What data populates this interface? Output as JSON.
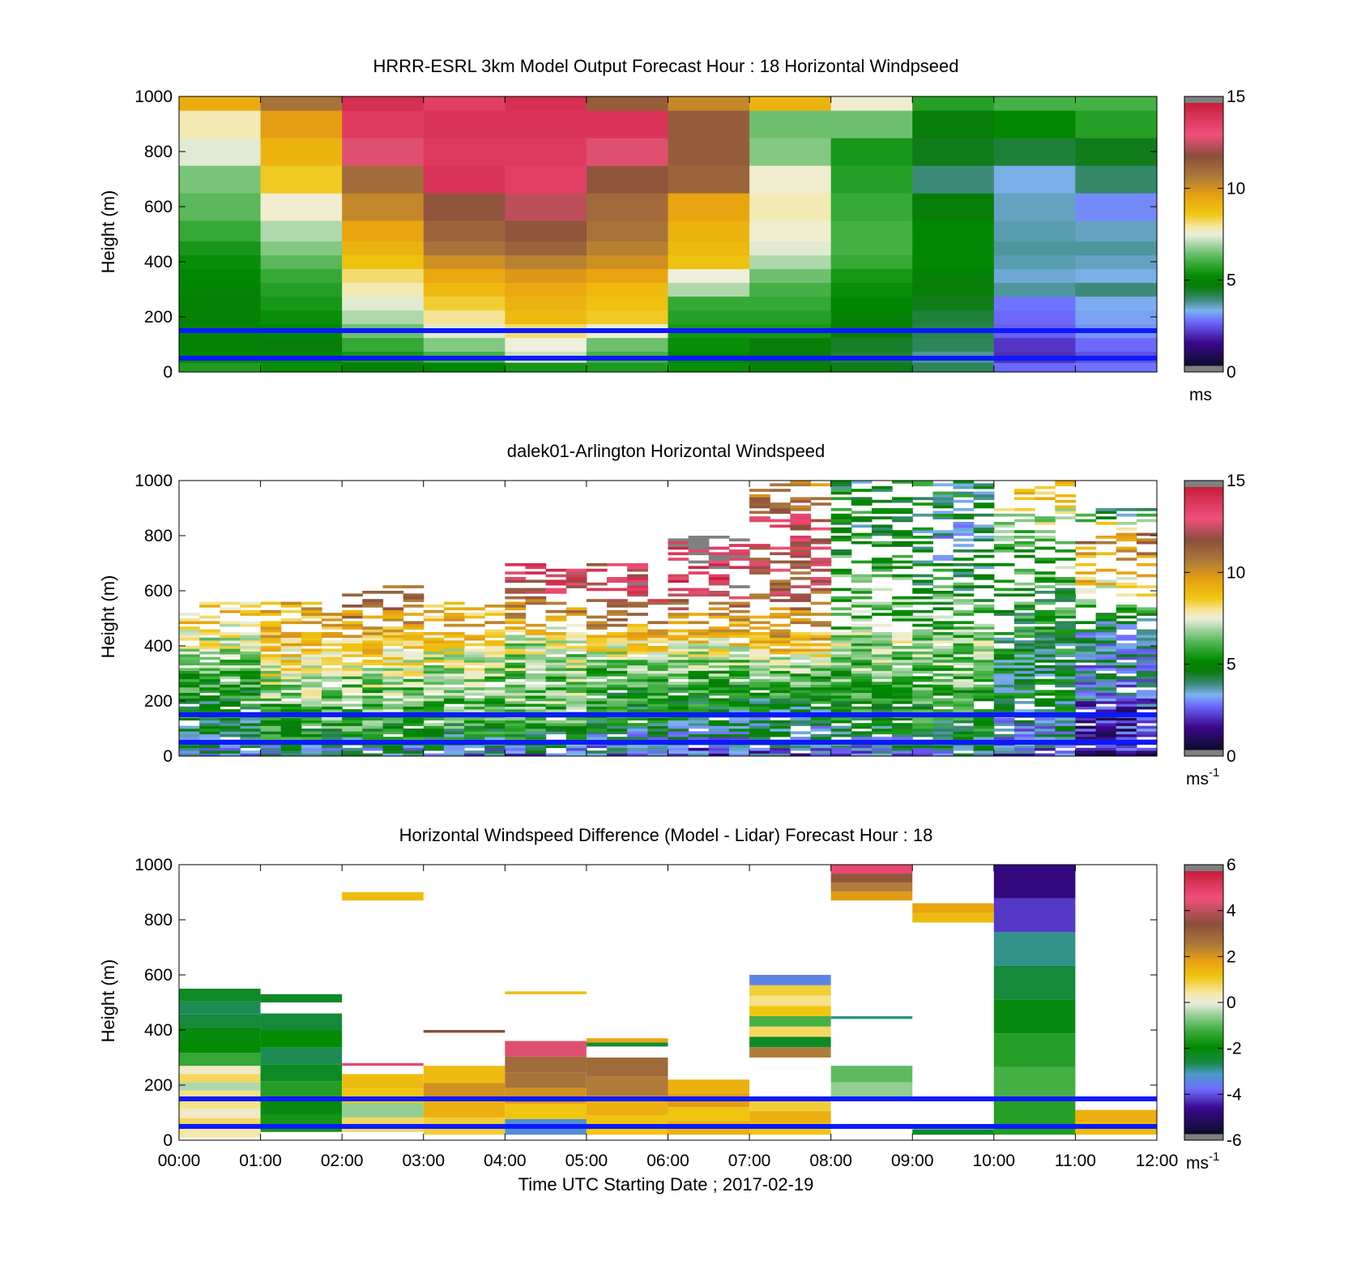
{
  "figure": {
    "xlabel": "Time UTC  Starting Date ; 2017-02-19",
    "x_tick_labels": [
      "00:00",
      "01:00",
      "02:00",
      "03:00",
      "04:00",
      "05:00",
      "06:00",
      "07:00",
      "08:00",
      "09:00",
      "10:00",
      "11:00",
      "12:00"
    ]
  },
  "reference_lines": {
    "color": "#0a1aff",
    "heights_m": [
      150,
      50
    ]
  },
  "chart_data": [
    {
      "type": "heatmap",
      "title": "HRRR-ESRL 3km Model Output   Forecast Hour : 18 Horizontal Windpseed",
      "ylabel": "Height (m)",
      "ylim": [
        0,
        1000
      ],
      "y_ticks": [
        0,
        200,
        400,
        600,
        800,
        1000
      ],
      "x_hours": [
        0,
        1,
        2,
        3,
        4,
        5,
        6,
        7,
        8,
        9,
        10,
        11
      ],
      "heights_m": [
        20,
        50,
        100,
        150,
        200,
        250,
        300,
        350,
        400,
        450,
        500,
        600,
        700,
        800,
        900,
        1000
      ],
      "values_ms": [
        [
          5.5,
          5.2,
          4.8,
          5.0,
          5.4,
          5.5,
          5.2,
          4.8,
          4.4,
          4.0,
          2.5,
          2.6
        ],
        [
          5.0,
          5.0,
          5.4,
          6.0,
          7.2,
          6.0,
          5.0,
          4.5,
          4.2,
          3.6,
          1.8,
          2.2
        ],
        [
          4.8,
          4.6,
          5.8,
          6.6,
          7.5,
          6.4,
          5.2,
          4.6,
          4.3,
          4.0,
          1.9,
          2.5
        ],
        [
          4.8,
          5.0,
          6.4,
          7.4,
          8.2,
          7.6,
          5.4,
          5.4,
          4.6,
          4.1,
          2.4,
          2.9
        ],
        [
          4.8,
          5.2,
          7.0,
          8.0,
          9.0,
          8.6,
          5.6,
          5.6,
          4.8,
          4.2,
          2.5,
          3.0
        ],
        [
          4.8,
          5.4,
          7.4,
          8.5,
          9.2,
          8.8,
          5.8,
          5.8,
          5.0,
          4.4,
          2.6,
          3.1
        ],
        [
          4.9,
          5.6,
          7.8,
          9.0,
          9.5,
          9.0,
          7.0,
          6.0,
          5.2,
          4.6,
          3.6,
          3.8
        ],
        [
          5.0,
          5.8,
          8.2,
          9.5,
          10.0,
          9.6,
          7.5,
          6.4,
          5.4,
          4.8,
          3.3,
          3.2
        ],
        [
          5.2,
          6.2,
          8.8,
          10.2,
          10.6,
          10.2,
          8.8,
          7.0,
          5.8,
          5.0,
          3.5,
          3.4
        ],
        [
          5.4,
          6.6,
          9.2,
          11.0,
          11.4,
          10.6,
          9.0,
          7.4,
          6.0,
          5.0,
          3.6,
          3.6
        ],
        [
          5.8,
          7.0,
          9.6,
          11.4,
          11.8,
          11.0,
          9.2,
          7.6,
          6.0,
          5.0,
          3.5,
          3.4
        ],
        [
          6.2,
          7.6,
          10.4,
          11.8,
          12.6,
          11.2,
          9.6,
          7.8,
          5.8,
          4.6,
          3.4,
          2.8
        ],
        [
          6.5,
          8.6,
          11.2,
          14.2,
          13.8,
          11.8,
          11.4,
          7.6,
          5.6,
          3.8,
          3.2,
          3.9
        ],
        [
          7.4,
          9.2,
          13.0,
          14.0,
          14.0,
          13.0,
          11.6,
          6.6,
          5.4,
          4.4,
          4.2,
          4.4
        ],
        [
          7.8,
          9.8,
          14.0,
          14.2,
          14.2,
          14.2,
          11.6,
          6.4,
          6.4,
          4.6,
          5.0,
          5.6
        ],
        [
          9.4,
          11.0,
          14.4,
          13.8,
          14.4,
          11.6,
          10.4,
          9.2,
          7.6,
          5.6,
          6.0,
          6.0
        ]
      ],
      "colorbar": {
        "ticks": [
          0,
          5,
          10,
          15
        ],
        "range": [
          0,
          15
        ],
        "unit": "ms"
      }
    },
    {
      "type": "heatmap",
      "title": "dalek01-Arlington  Horizontal Windspeed",
      "ylabel": "Height (m)",
      "ylim": [
        0,
        1000
      ],
      "y_ticks": [
        0,
        200,
        400,
        600,
        800,
        1000
      ],
      "x_hours": [
        0,
        1,
        2,
        3,
        4,
        5,
        6,
        7,
        8,
        9,
        10,
        11
      ],
      "profile_tops_m": [
        560,
        560,
        620,
        560,
        700,
        700,
        800,
        1000,
        1000,
        1000,
        1000,
        900
      ],
      "hourly_profiles_ms": [
        {
          "0": 3.5,
          "100": 4.6,
          "200": 5.0,
          "300": 5.8,
          "400": 7.2,
          "500": 8.6,
          "560": 9.0
        },
        {
          "0": 3.6,
          "100": 5.4,
          "200": 6.4,
          "300": 7.6,
          "400": 8.8,
          "500": 9.4,
          "560": 9.2
        },
        {
          "0": 3.2,
          "100": 5.6,
          "200": 6.2,
          "300": 7.2,
          "400": 8.8,
          "500": 10.4,
          "620": 12.0
        },
        {
          "0": 3.0,
          "100": 5.4,
          "200": 6.0,
          "300": 6.8,
          "400": 8.4,
          "500": 9.4,
          "560": 9.0
        },
        {
          "0": 3.0,
          "100": 5.6,
          "200": 6.4,
          "300": 6.6,
          "400": 7.2,
          "500": 9.4,
          "600": 13.0,
          "700": 13.6
        },
        {
          "0": 2.4,
          "100": 4.4,
          "200": 5.2,
          "300": 6.0,
          "400": 8.4,
          "500": 10.6,
          "600": 14.0,
          "700": 13.0
        },
        {
          "0": 2.2,
          "100": 4.2,
          "200": 4.8,
          "300": 6.0,
          "400": 8.2,
          "500": 10.0,
          "600": 13.6,
          "800": 15.4
        },
        {
          "0": 2.6,
          "100": 3.8,
          "200": 4.8,
          "300": 6.2,
          "400": 9.2,
          "500": 10.2,
          "600": 11.6,
          "800": 13.4,
          "1000": 9.4
        },
        {
          "0": 3.0,
          "100": 4.4,
          "200": 5.6,
          "300": 6.2,
          "400": 6.8,
          "500": 6.2,
          "600": 6.0,
          "800": 5.0,
          "1000": 4.4
        },
        {
          "0": 3.4,
          "100": 4.8,
          "200": 5.6,
          "300": 6.4,
          "400": 6.6,
          "500": 6.0,
          "600": 5.0,
          "800": 3.8,
          "1000": 4.6
        },
        {
          "0": 2.2,
          "100": 3.2,
          "200": 4.4,
          "300": 4.2,
          "400": 4.8,
          "500": 5.2,
          "600": 5.4,
          "800": 6.4,
          "1000": 9.6
        },
        {
          "0": 1.2,
          "100": 1.6,
          "200": 2.6,
          "300": 3.2,
          "400": 3.4,
          "500": 4.6,
          "600": 8.2,
          "800": 10.8,
          "900": 2.2
        }
      ],
      "colorbar": {
        "ticks": [
          0,
          5,
          10,
          15
        ],
        "range": [
          0,
          15
        ],
        "unit": "ms",
        "unit_exponent": "-1"
      }
    },
    {
      "type": "heatmap",
      "title": "Horizontal Windspeed Difference (Model - Lidar) Forecast Hour : 18",
      "ylabel": "Height (m)",
      "ylim": [
        0,
        1000
      ],
      "y_ticks": [
        0,
        200,
        400,
        600,
        800,
        1000
      ],
      "x_hours": [
        0,
        1,
        2,
        3,
        4,
        5,
        6,
        7,
        8,
        9,
        10,
        11
      ],
      "blocks": [
        {
          "hour": 0,
          "from_m": 10,
          "to_m": 150,
          "values_ms": [
            0.4,
            0.8,
            0.2,
            0.6
          ]
        },
        {
          "hour": 0,
          "from_m": 150,
          "to_m": 270,
          "values_ms": [
            0.6,
            -0.4,
            0.8,
            0.2
          ]
        },
        {
          "hour": 0,
          "from_m": 270,
          "to_m": 550,
          "values_ms": [
            -1.4,
            -2.0,
            -2.2,
            -2.6,
            -2.8,
            -2.4
          ]
        },
        {
          "hour": 1,
          "from_m": 30,
          "to_m": 460,
          "values_ms": [
            -1.8,
            -2.2,
            -1.6,
            -2.4,
            -2.8,
            -2.0,
            -2.6
          ]
        },
        {
          "hour": 1,
          "from_m": 500,
          "to_m": 530,
          "values_ms": [
            -2.4
          ]
        },
        {
          "hour": 2,
          "from_m": 30,
          "to_m": 240,
          "values_ms": [
            0.8,
            -0.6,
            1.2,
            1.4
          ]
        },
        {
          "hour": 2,
          "from_m": 270,
          "to_m": 280,
          "values_ms": [
            5.0
          ]
        },
        {
          "hour": 2,
          "from_m": 870,
          "to_m": 900,
          "values_ms": [
            1.4
          ]
        },
        {
          "hour": 3,
          "from_m": 20,
          "to_m": 270,
          "values_ms": [
            1.0,
            1.6,
            2.2,
            1.4
          ]
        },
        {
          "hour": 3,
          "from_m": 390,
          "to_m": 400,
          "values_ms": [
            3.6
          ]
        },
        {
          "hour": 4,
          "from_m": 20,
          "to_m": 360,
          "values_ms": [
            -3.4,
            1.2,
            2.2,
            2.8,
            3.0,
            4.6
          ]
        },
        {
          "hour": 4,
          "from_m": 530,
          "to_m": 540,
          "values_ms": [
            1.4
          ]
        },
        {
          "hour": 5,
          "from_m": 20,
          "to_m": 300,
          "values_ms": [
            1.2,
            1.6,
            2.6,
            3.0
          ]
        },
        {
          "hour": 5,
          "from_m": 340,
          "to_m": 370,
          "values_ms": [
            -2.6,
            1.8
          ]
        },
        {
          "hour": 6,
          "from_m": 20,
          "to_m": 220,
          "values_ms": [
            1.6,
            1.2,
            2.0,
            1.6
          ]
        },
        {
          "hour": 7,
          "from_m": 20,
          "to_m": 150,
          "values_ms": [
            1.2,
            1.6,
            1.0
          ]
        },
        {
          "hour": 7,
          "from_m": 300,
          "to_m": 600,
          "values_ms": [
            2.6,
            -2.4,
            0.8,
            -1.2,
            1.2,
            0.6,
            1.0,
            -3.6
          ]
        },
        {
          "hour": 8,
          "from_m": 150,
          "to_m": 270,
          "values_ms": [
            -0.6,
            -1.0
          ]
        },
        {
          "hour": 8,
          "from_m": 440,
          "to_m": 450,
          "values_ms": [
            -3.0
          ]
        },
        {
          "hour": 8,
          "from_m": 870,
          "to_m": 1000,
          "values_ms": [
            2.0,
            2.6,
            3.4,
            5.0
          ]
        },
        {
          "hour": 9,
          "from_m": 20,
          "to_m": 40,
          "values_ms": [
            -2.4
          ]
        },
        {
          "hour": 9,
          "from_m": 790,
          "to_m": 860,
          "values_ms": [
            1.4,
            1.8
          ]
        },
        {
          "hour": 10,
          "from_m": 20,
          "to_m": 1000,
          "values_ms": [
            -1.6,
            -1.2,
            -1.6,
            -2.2,
            -2.6,
            -3.0,
            -4.4,
            -5.0
          ]
        },
        {
          "hour": 11,
          "from_m": 20,
          "to_m": 110,
          "values_ms": [
            1.4,
            1.6
          ]
        }
      ],
      "colorbar": {
        "ticks": [
          -6,
          -4,
          -2,
          0,
          2,
          4,
          6
        ],
        "range": [
          -6,
          6
        ],
        "unit": "ms",
        "unit_exponent": "-1"
      }
    }
  ]
}
